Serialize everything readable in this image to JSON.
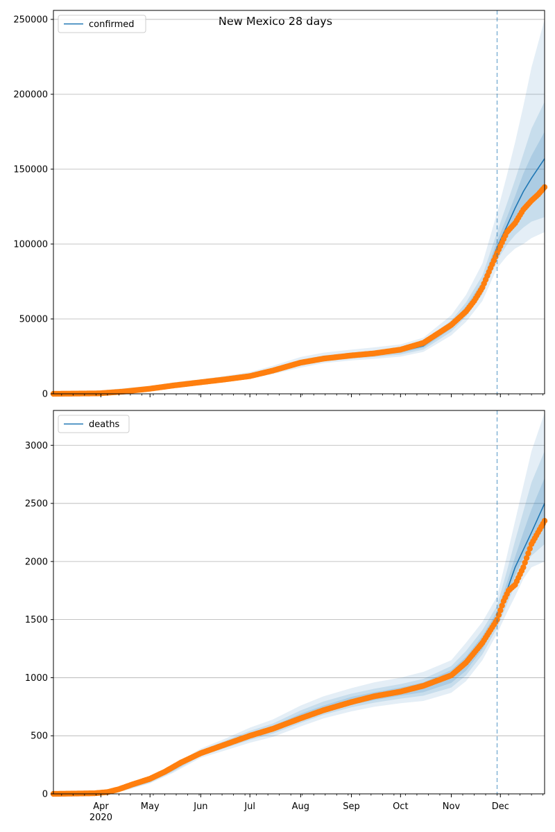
{
  "figure": {
    "title": "New Mexico 28 days"
  },
  "chart_data": [
    {
      "type": "line",
      "legend": {
        "label": "confirmed",
        "position": "top-left"
      },
      "grid": "y",
      "ylim": [
        0,
        256000
      ],
      "xlim": [
        "2020-03-03",
        "2020-12-28"
      ],
      "y_ticks": [
        0,
        50000,
        100000,
        150000,
        200000,
        250000
      ],
      "forecast_start": "2020-11-29",
      "colors": {
        "model": "#1f77b4",
        "observed": "#ff7f0e",
        "band": "#1f77b4"
      },
      "model": {
        "x": [
          "2020-03-03",
          "2020-03-15",
          "2020-04-01",
          "2020-04-15",
          "2020-05-01",
          "2020-05-15",
          "2020-06-01",
          "2020-06-15",
          "2020-07-01",
          "2020-07-15",
          "2020-08-01",
          "2020-08-15",
          "2020-09-01",
          "2020-09-15",
          "2020-10-01",
          "2020-10-15",
          "2020-11-01",
          "2020-11-10",
          "2020-11-20",
          "2020-11-29",
          "2020-12-05",
          "2020-12-10",
          "2020-12-15",
          "2020-12-20",
          "2020-12-28"
        ],
        "y": [
          0,
          100,
          800,
          2200,
          3900,
          5800,
          7500,
          9200,
          11800,
          15500,
          20500,
          23300,
          25300,
          26500,
          28300,
          32000,
          45000,
          56000,
          72000,
          98000,
          112000,
          124000,
          135000,
          144000,
          157000
        ]
      },
      "bands": [
        {
          "lower": [
            0,
            0,
            300,
            1500,
            3000,
            4800,
            6300,
            7700,
            10000,
            13200,
            17500,
            20500,
            22300,
            23300,
            24800,
            28000,
            39000,
            48000,
            62000,
            84000,
            92000,
            97000,
            100000,
            104000,
            108000
          ],
          "upper": [
            500,
            1500,
            2300,
            3700,
            5400,
            7600,
            9700,
            11800,
            14500,
            18700,
            24600,
            27500,
            29500,
            31000,
            33000,
            37500,
            52500,
            66000,
            87000,
            121000,
            146000,
            168000,
            192000,
            218000,
            250000
          ]
        },
        {
          "lower": [
            0,
            0,
            500,
            1800,
            3400,
            5200,
            6800,
            8300,
            10800,
            14200,
            18800,
            21600,
            23500,
            24600,
            26200,
            29500,
            41500,
            51500,
            66500,
            89000,
            99500,
            106000,
            111000,
            115000,
            118000
          ],
          "upper": [
            300,
            1000,
            1800,
            3200,
            4900,
            6900,
            8700,
            10600,
            13200,
            17200,
            22800,
            25600,
            27600,
            28900,
            30900,
            35000,
            49000,
            61000,
            79000,
            108000,
            127000,
            143000,
            160000,
            177000,
            195000
          ]
        },
        {
          "lower": [
            0,
            0,
            650,
            2000,
            3700,
            5500,
            7200,
            8800,
            11300,
            14900,
            19700,
            22500,
            24400,
            25600,
            27300,
            30800,
            43400,
            54000,
            69500,
            94000,
            106000,
            115000,
            123000,
            129000,
            136000
          ],
          "upper": [
            200,
            700,
            1300,
            2700,
            4400,
            6300,
            8100,
            9800,
            12500,
            16500,
            21800,
            24700,
            26600,
            27900,
            29800,
            33600,
            47300,
            58500,
            75000,
            102000,
            118000,
            132000,
            147000,
            159000,
            175000
          ]
        }
      ],
      "observed": {
        "x": [
          "2020-03-03",
          "2020-03-31",
          "2020-04-15",
          "2020-05-01",
          "2020-05-15",
          "2020-06-01",
          "2020-06-15",
          "2020-07-01",
          "2020-07-15",
          "2020-08-01",
          "2020-08-15",
          "2020-09-01",
          "2020-09-15",
          "2020-10-01",
          "2020-10-15",
          "2020-11-01",
          "2020-11-10",
          "2020-11-15",
          "2020-11-20",
          "2020-11-25",
          "2020-11-29",
          "2020-12-05",
          "2020-12-10",
          "2020-12-15",
          "2020-12-20",
          "2020-12-24",
          "2020-12-28"
        ],
        "y": [
          0,
          300,
          1500,
          3400,
          5500,
          7700,
          9500,
          11800,
          15500,
          20800,
          23500,
          25600,
          27000,
          29500,
          34000,
          46000,
          55000,
          62000,
          71000,
          84000,
          94000,
          108000,
          114000,
          123000,
          129000,
          133000,
          138000
        ]
      }
    },
    {
      "type": "line",
      "legend": {
        "label": "deaths",
        "position": "top-left"
      },
      "grid": "y",
      "ylim": [
        0,
        3300
      ],
      "xlim": [
        "2020-03-03",
        "2020-12-28"
      ],
      "y_ticks": [
        0,
        500,
        1000,
        1500,
        2000,
        2500,
        3000
      ],
      "x_ticks": [
        "2020-04-01",
        "2020-05-01",
        "2020-06-01",
        "2020-07-01",
        "2020-08-01",
        "2020-09-01",
        "2020-10-01",
        "2020-11-01",
        "2020-12-01"
      ],
      "x_tick_labels": [
        "Apr",
        "May",
        "Jun",
        "Jul",
        "Aug",
        "Sep",
        "Oct",
        "Nov",
        "Dec"
      ],
      "x_year_label": "2020",
      "forecast_start": "2020-11-29",
      "colors": {
        "model": "#1f77b4",
        "observed": "#ff7f0e",
        "band": "#1f77b4"
      },
      "model": {
        "x": [
          "2020-03-03",
          "2020-03-25",
          "2020-04-05",
          "2020-04-15",
          "2020-05-01",
          "2020-05-15",
          "2020-06-01",
          "2020-06-15",
          "2020-07-01",
          "2020-07-15",
          "2020-08-01",
          "2020-08-15",
          "2020-09-01",
          "2020-09-15",
          "2020-10-01",
          "2020-10-15",
          "2020-11-01",
          "2020-11-10",
          "2020-11-20",
          "2020-11-29",
          "2020-12-05",
          "2020-12-10",
          "2020-12-15",
          "2020-12-20",
          "2020-12-28"
        ],
        "y": [
          0,
          5,
          15,
          40,
          110,
          210,
          350,
          420,
          500,
          560,
          660,
          730,
          800,
          840,
          880,
          920,
          1010,
          1120,
          1300,
          1520,
          1750,
          1950,
          2100,
          2250,
          2500
        ]
      },
      "bands": [
        {
          "lower": [
            0,
            0,
            5,
            25,
            90,
            180,
            310,
            370,
            440,
            490,
            580,
            650,
            710,
            750,
            780,
            800,
            870,
            970,
            1150,
            1380,
            1560,
            1700,
            1850,
            1950,
            2000
          ],
          "upper": [
            10,
            15,
            30,
            60,
            135,
            245,
            390,
            470,
            570,
            640,
            760,
            840,
            910,
            960,
            1000,
            1050,
            1150,
            1300,
            1480,
            1700,
            2050,
            2350,
            2650,
            2950,
            3280
          ]
        },
        {
          "lower": [
            0,
            0,
            8,
            30,
            97,
            190,
            325,
            390,
            463,
            518,
            610,
            680,
            745,
            785,
            820,
            845,
            915,
            1020,
            1200,
            1430,
            1630,
            1800,
            1950,
            2050,
            2150
          ],
          "upper": [
            7,
            11,
            24,
            52,
            124,
            232,
            375,
            452,
            542,
            605,
            718,
            795,
            863,
            905,
            945,
            990,
            1100,
            1230,
            1410,
            1620,
            1920,
            2180,
            2430,
            2680,
            2950
          ]
        },
        {
          "lower": [
            0,
            2,
            11,
            35,
            103,
            199,
            337,
            405,
            480,
            537,
            632,
            702,
            767,
            807,
            845,
            875,
            955,
            1060,
            1245,
            1470,
            1690,
            1880,
            2030,
            2140,
            2290
          ],
          "upper": [
            4,
            8,
            20,
            46,
            117,
            221,
            363,
            436,
            522,
            583,
            690,
            760,
            835,
            875,
            915,
            960,
            1065,
            1180,
            1360,
            1570,
            1820,
            2040,
            2250,
            2450,
            2720
          ]
        }
      ],
      "observed": {
        "x": [
          "2020-03-03",
          "2020-03-28",
          "2020-04-05",
          "2020-04-12",
          "2020-04-20",
          "2020-05-01",
          "2020-05-10",
          "2020-05-20",
          "2020-06-01",
          "2020-06-15",
          "2020-07-01",
          "2020-07-15",
          "2020-08-01",
          "2020-08-15",
          "2020-09-01",
          "2020-09-15",
          "2020-10-01",
          "2020-10-15",
          "2020-11-01",
          "2020-11-10",
          "2020-11-20",
          "2020-11-29",
          "2020-12-03",
          "2020-12-06",
          "2020-12-10",
          "2020-12-15",
          "2020-12-20",
          "2020-12-24",
          "2020-12-28"
        ],
        "y": [
          0,
          5,
          15,
          40,
          80,
          130,
          190,
          270,
          350,
          420,
          500,
          560,
          650,
          720,
          790,
          840,
          880,
          930,
          1020,
          1130,
          1300,
          1500,
          1660,
          1750,
          1800,
          1950,
          2150,
          2250,
          2350
        ]
      }
    }
  ]
}
